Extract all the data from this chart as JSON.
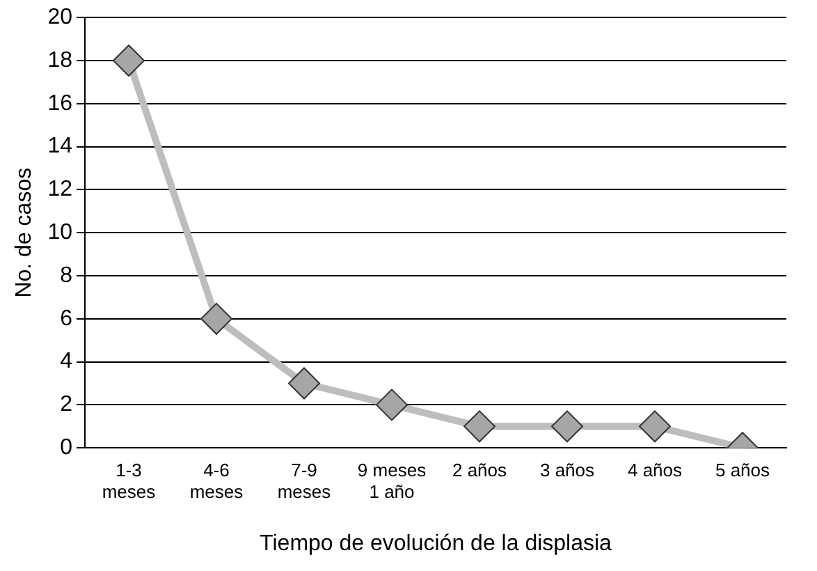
{
  "chart_data": {
    "type": "line",
    "xlabel": "Tiempo de evolución de la displasia",
    "ylabel": "No. de casos",
    "categories": [
      "1-3\nmeses",
      "4-6\nmeses",
      "7-9\nmeses",
      "9 meses\n1 año",
      "2 años",
      "3 años",
      "4 años",
      "5 años"
    ],
    "series": [
      {
        "color": "#bdbdbd",
        "values": [
          18,
          6,
          3,
          2,
          1,
          1,
          1,
          0
        ]
      }
    ],
    "ylim": [
      0,
      20
    ],
    "yticks": [
      0,
      2,
      4,
      6,
      8,
      10,
      12,
      14,
      16,
      18,
      20
    ],
    "grid": "y",
    "legend": false,
    "marker": "diamond",
    "line_style": "solid"
  }
}
